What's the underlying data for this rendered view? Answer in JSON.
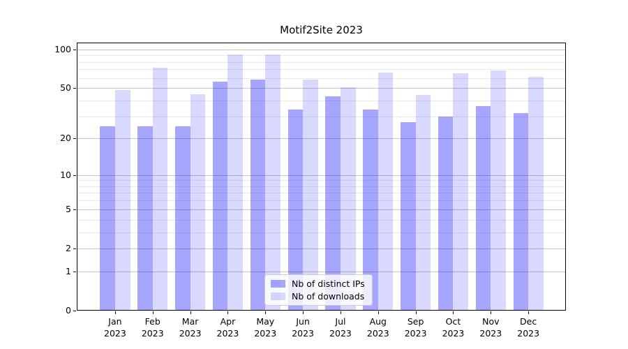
{
  "title": "Motif2Site 2023",
  "chart_data": {
    "type": "bar",
    "title": "Motif2Site 2023",
    "categories": [
      "Jan",
      "Feb",
      "Mar",
      "Apr",
      "May",
      "Jun",
      "Jul",
      "Aug",
      "Sep",
      "Oct",
      "Nov",
      "Dec"
    ],
    "category_year": "2023",
    "series": [
      {
        "name": "Nb of distinct IPs",
        "color": "rgba(0,0,255,0.35)",
        "values": [
          25,
          25,
          25,
          56,
          58,
          34,
          43,
          34,
          27,
          30,
          36,
          32
        ]
      },
      {
        "name": "Nb of downloads",
        "color": "rgba(0,0,255,0.15)",
        "values": [
          48,
          72,
          45,
          92,
          92,
          58,
          51,
          66,
          44,
          65,
          69,
          61
        ]
      }
    ],
    "yscale": "log1p",
    "ylim": [
      0,
      113
    ],
    "yticks": [
      100,
      50,
      20,
      10,
      5,
      2,
      1,
      0
    ],
    "yticks_minor": [
      3,
      4,
      6,
      7,
      8,
      9,
      30,
      40,
      60,
      70,
      80,
      90
    ],
    "xlabel": "",
    "ylabel": "",
    "grid": "on",
    "legend_position": "lower center"
  },
  "colors": {
    "background": "#ffffff",
    "axis": "#000000",
    "grid_major": "#c6c6c6",
    "grid_minor": "#eaeaea",
    "legend_border": "#cccccc"
  }
}
